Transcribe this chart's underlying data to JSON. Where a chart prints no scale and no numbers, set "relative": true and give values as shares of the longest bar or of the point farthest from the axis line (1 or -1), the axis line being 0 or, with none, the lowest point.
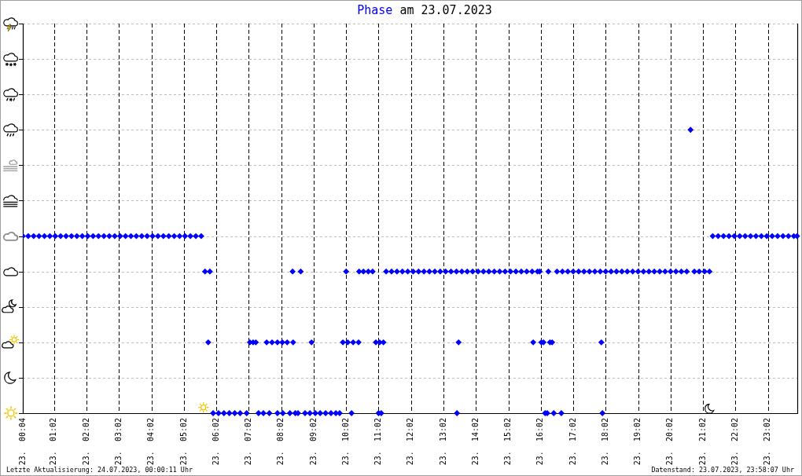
{
  "chart_data": {
    "type": "scatter",
    "title": "am 23.07.2023",
    "relative": true,
    "annotations": [
      "Letzte Aktualisierung: 24.07.2023, 00:00:11 Uhr",
      "Datenstand: 23.07.2023, 23:58:07 Uhr"
    ],
    "x": [
      "2023-07-23T00:04",
      "2023-07-23T00:14",
      "2023-07-23T00:24",
      "2023-07-23T00:34",
      "2023-07-23T00:44",
      "2023-07-23T00:54",
      "2023-07-23T01:04",
      "2023-07-23T01:14",
      "2023-07-23T01:24",
      "2023-07-23T01:34",
      "2023-07-23T01:44",
      "2023-07-23T01:54",
      "2023-07-23T02:04",
      "2023-07-23T02:14",
      "2023-07-23T02:24",
      "2023-07-23T02:34",
      "2023-07-23T02:44",
      "2023-07-23T02:54",
      "2023-07-23T03:04",
      "2023-07-23T03:14",
      "2023-07-23T03:24",
      "2023-07-23T03:34",
      "2023-07-23T03:44",
      "2023-07-23T03:54",
      "2023-07-23T04:04",
      "2023-07-23T04:14",
      "2023-07-23T04:24",
      "2023-07-23T04:34",
      "2023-07-23T04:44",
      "2023-07-23T04:54",
      "2023-07-23T05:04",
      "2023-07-23T05:14",
      "2023-07-23T05:24",
      "2023-07-23T05:34",
      "2023-07-23T05:41",
      "2023-07-23T05:47",
      "2023-07-23T05:50",
      "2023-07-23T05:56",
      "2023-07-23T06:06",
      "2023-07-23T06:16",
      "2023-07-23T06:26",
      "2023-07-23T06:36",
      "2023-07-23T06:46",
      "2023-07-23T06:58",
      "2023-07-23T07:04",
      "2023-07-23T07:10",
      "2023-07-23T07:15",
      "2023-07-23T07:20",
      "2023-07-23T07:29",
      "2023-07-23T07:35",
      "2023-07-23T07:40",
      "2023-07-23T07:45",
      "2023-07-23T07:55",
      "2023-07-23T07:55",
      "2023-07-23T08:04",
      "2023-07-23T08:05",
      "2023-07-23T08:13",
      "2023-07-23T08:18",
      "2023-07-23T08:23",
      "2023-07-23T08:24",
      "2023-07-23T08:28",
      "2023-07-23T08:33",
      "2023-07-23T08:38",
      "2023-07-23T08:46",
      "2023-07-23T08:55",
      "2023-07-23T08:58",
      "2023-07-23T09:05",
      "2023-07-23T09:14",
      "2023-07-23T09:24",
      "2023-07-23T09:34",
      "2023-07-23T09:43",
      "2023-07-23T09:50",
      "2023-07-23T09:56",
      "2023-07-23T10:02",
      "2023-07-23T10:05",
      "2023-07-23T10:12",
      "2023-07-23T10:15",
      "2023-07-23T10:25",
      "2023-07-23T10:26",
      "2023-07-23T10:34",
      "2023-07-23T10:43",
      "2023-07-23T10:51",
      "2023-07-23T10:57",
      "2023-07-23T11:02",
      "2023-07-23T11:04",
      "2023-07-23T11:07",
      "2023-07-23T11:11",
      "2023-07-23T11:16",
      "2023-07-23T11:26",
      "2023-07-23T11:36",
      "2023-07-23T11:46",
      "2023-07-23T11:56",
      "2023-07-23T12:06",
      "2023-07-23T12:16",
      "2023-07-23T12:26",
      "2023-07-23T12:36",
      "2023-07-23T12:46",
      "2023-07-23T12:56",
      "2023-07-23T13:06",
      "2023-07-23T13:16",
      "2023-07-23T13:26",
      "2023-07-23T13:27",
      "2023-07-23T13:30",
      "2023-07-23T13:36",
      "2023-07-23T13:46",
      "2023-07-23T13:56",
      "2023-07-23T14:06",
      "2023-07-23T14:16",
      "2023-07-23T14:26",
      "2023-07-23T14:36",
      "2023-07-23T14:46",
      "2023-07-23T14:56",
      "2023-07-23T15:06",
      "2023-07-23T15:16",
      "2023-07-23T15:26",
      "2023-07-23T15:36",
      "2023-07-23T15:46",
      "2023-07-23T15:48",
      "2023-07-23T15:56",
      "2023-07-23T16:00",
      "2023-07-23T16:03",
      "2023-07-23T16:07",
      "2023-07-23T16:10",
      "2023-07-23T16:14",
      "2023-07-23T16:16",
      "2023-07-23T16:19",
      "2023-07-23T16:23",
      "2023-07-23T16:26",
      "2023-07-23T16:32",
      "2023-07-23T16:40",
      "2023-07-23T16:42",
      "2023-07-23T16:52",
      "2023-07-23T17:02",
      "2023-07-23T17:12",
      "2023-07-23T17:22",
      "2023-07-23T17:32",
      "2023-07-23T17:42",
      "2023-07-23T17:52",
      "2023-07-23T17:54",
      "2023-07-23T17:56",
      "2023-07-23T18:02",
      "2023-07-23T18:12",
      "2023-07-23T18:22",
      "2023-07-23T18:32",
      "2023-07-23T18:42",
      "2023-07-23T18:52",
      "2023-07-23T19:02",
      "2023-07-23T19:12",
      "2023-07-23T19:22",
      "2023-07-23T19:32",
      "2023-07-23T19:42",
      "2023-07-23T19:52",
      "2023-07-23T20:02",
      "2023-07-23T20:12",
      "2023-07-23T20:22",
      "2023-07-23T20:32",
      "2023-07-23T20:39",
      "2023-07-23T20:46",
      "2023-07-23T20:55",
      "2023-07-23T21:05",
      "2023-07-23T21:14",
      "2023-07-23T21:20",
      "2023-07-23T21:30",
      "2023-07-23T21:40",
      "2023-07-23T21:50",
      "2023-07-23T22:00",
      "2023-07-23T22:10",
      "2023-07-23T22:20",
      "2023-07-23T22:30",
      "2023-07-23T22:40",
      "2023-07-23T22:50",
      "2023-07-23T23:00",
      "2023-07-23T23:10",
      "2023-07-23T23:20",
      "2023-07-23T23:30",
      "2023-07-23T23:40",
      "2023-07-23T23:50",
      "2023-07-23T23:56"
    ],
    "series": [
      {
        "name": "Phase",
        "color": "#0000ff",
        "values": [
          0.625,
          0.625,
          0.625,
          0.625,
          0.625,
          0.625,
          0.625,
          0.625,
          0.625,
          0.625,
          0.625,
          0.625,
          0.625,
          0.625,
          0.625,
          0.625,
          0.625,
          0.625,
          0.625,
          0.625,
          0.625,
          0.625,
          0.625,
          0.625,
          0.625,
          0.625,
          0.625,
          0.625,
          0.625,
          0.625,
          0.625,
          0.625,
          0.625,
          0.625,
          0.5,
          0.25,
          0.5,
          0,
          0,
          0,
          0,
          0,
          0,
          0,
          0.25,
          0.25,
          0.25,
          0,
          0,
          0.25,
          0,
          0.25,
          0.25,
          0,
          0.25,
          0,
          0.25,
          0,
          0.5,
          0.25,
          0,
          0,
          0.5,
          0,
          0,
          0.25,
          0,
          0,
          0,
          0,
          0,
          0,
          0.25,
          0.5,
          0.25,
          0,
          0.25,
          0.25,
          0.5,
          0.5,
          0.5,
          0.5,
          0.25,
          0,
          0.25,
          0,
          0.25,
          0.5,
          0.5,
          0.5,
          0.5,
          0.5,
          0.5,
          0.5,
          0.5,
          0.5,
          0.5,
          0.5,
          0.5,
          0.5,
          0.5,
          0,
          0.25,
          0.5,
          0.5,
          0.5,
          0.5,
          0.5,
          0.5,
          0.5,
          0.5,
          0.5,
          0.5,
          0.5,
          0.5,
          0.5,
          0.5,
          0.25,
          0.5,
          0.5,
          0.25,
          0.25,
          0,
          0,
          0.5,
          0.25,
          0.25,
          0,
          0.5,
          0,
          0.5,
          0.5,
          0.5,
          0.5,
          0.5,
          0.5,
          0.5,
          0.5,
          0.25,
          0,
          0.5,
          0.5,
          0.5,
          0.5,
          0.5,
          0.5,
          0.5,
          0.5,
          0.5,
          0.5,
          0.5,
          0.5,
          0.5,
          0.5,
          0.5,
          0.5,
          1,
          0.5,
          0.5,
          0.5,
          0.5,
          0.625,
          0.625,
          0.625,
          0.625,
          0.625,
          0.625,
          0.625,
          0.625,
          0.625,
          0.625,
          0.625,
          0.625,
          0.625,
          0.625,
          0.625,
          0.625,
          0.625
        ]
      }
    ],
    "xlim": [
      "2023-07-23T00:04",
      "2023-07-23T23:58"
    ],
    "xticks": [
      {
        "value": "2023-07-23T00:04",
        "label": "23.  00:04"
      },
      {
        "value": "2023-07-23T01:02",
        "label": "23.  01:02"
      },
      {
        "value": "2023-07-23T02:02",
        "label": "23.  02:02"
      },
      {
        "value": "2023-07-23T03:02",
        "label": "23.  03:02"
      },
      {
        "value": "2023-07-23T04:02",
        "label": "23.  04:02"
      },
      {
        "value": "2023-07-23T05:02",
        "label": "23.  05:02"
      },
      {
        "value": "2023-07-23T06:02",
        "label": "23.  06:02"
      },
      {
        "value": "2023-07-23T07:02",
        "label": "23.  07:02"
      },
      {
        "value": "2023-07-23T08:02",
        "label": "23.  08:02"
      },
      {
        "value": "2023-07-23T09:02",
        "label": "23.  09:02"
      },
      {
        "value": "2023-07-23T10:02",
        "label": "23.  10:02"
      },
      {
        "value": "2023-07-23T11:02",
        "label": "23.  11:02"
      },
      {
        "value": "2023-07-23T12:02",
        "label": "23.  12:02"
      },
      {
        "value": "2023-07-23T13:02",
        "label": "23.  13:02"
      },
      {
        "value": "2023-07-23T14:02",
        "label": "23.  14:02"
      },
      {
        "value": "2023-07-23T15:02",
        "label": "23.  15:02"
      },
      {
        "value": "2023-07-23T16:02",
        "label": "23.  16:02"
      },
      {
        "value": "2023-07-23T17:02",
        "label": "23.  17:02"
      },
      {
        "value": "2023-07-23T18:02",
        "label": "23.  18:02"
      },
      {
        "value": "2023-07-23T19:02",
        "label": "23.  19:02"
      },
      {
        "value": "2023-07-23T20:02",
        "label": "23.  20:02"
      },
      {
        "value": "2023-07-23T21:02",
        "label": "23.  21:02"
      },
      {
        "value": "2023-07-23T22:02",
        "label": "23.  22:02"
      },
      {
        "value": "2023-07-23T23:02",
        "label": "23.  23:02"
      }
    ],
    "grid": true,
    "marker": "diamond"
  }
}
